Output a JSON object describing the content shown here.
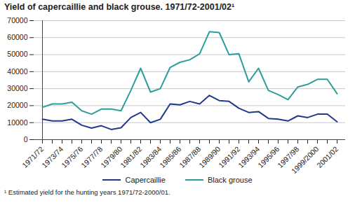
{
  "chart_data": {
    "type": "line",
    "title": "Yield of capercaillie and black grouse. 1971/72-2001/02¹",
    "footnote": "¹ Estimated yield for the hunting years 1971/72-2000/01.",
    "categories": [
      "1971/72",
      null,
      "1973/74",
      null,
      "1975/76",
      null,
      "1977/78",
      null,
      "1979/80",
      null,
      "1981/82",
      null,
      "1983/84",
      null,
      "1985/86",
      null,
      "1987/88",
      null,
      "1989/90",
      null,
      "1991/92",
      null,
      "1993/94",
      null,
      "1995/96",
      null,
      "1997/98",
      null,
      "1999/2000",
      null,
      "2001/02"
    ],
    "series": [
      {
        "name": "Capercaillie",
        "color": "#1f3a8a",
        "values": [
          12000,
          11000,
          11000,
          12000,
          8500,
          6800,
          8200,
          6000,
          7000,
          13000,
          16000,
          10000,
          12000,
          21000,
          20500,
          22500,
          21000,
          26000,
          23000,
          22500,
          18500,
          16000,
          16500,
          12500,
          12000,
          11000,
          14000,
          13000,
          15000,
          15000,
          10500
        ]
      },
      {
        "name": "Black grouse",
        "color": "#2e9e9a",
        "values": [
          19000,
          21000,
          21000,
          22000,
          17000,
          15000,
          18000,
          18000,
          17000,
          29000,
          42000,
          28000,
          30000,
          42500,
          45500,
          47000,
          50500,
          63500,
          63000,
          50000,
          50500,
          34000,
          42000,
          29000,
          26500,
          23500,
          31000,
          32500,
          35500,
          35500,
          27000
        ]
      }
    ],
    "ylim": [
      0,
      70000
    ],
    "yticks": [
      0,
      10000,
      20000,
      30000,
      40000,
      50000,
      60000,
      70000
    ],
    "grid": true,
    "legend": "bottom"
  }
}
